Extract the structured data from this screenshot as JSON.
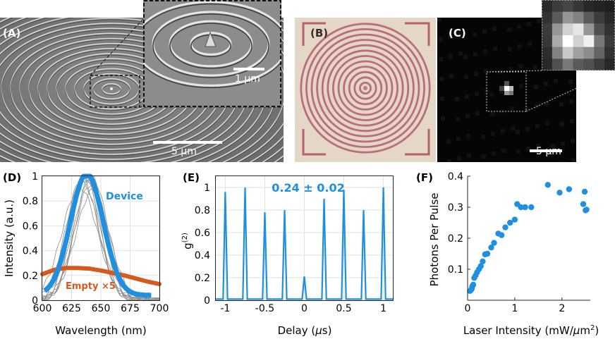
{
  "panels": {
    "A": {
      "label": "(A)",
      "scale_main": "5 µm",
      "scale_inset": "1 µm"
    },
    "B": {
      "label": "(B)"
    },
    "C": {
      "label": "(C)",
      "scale": "5 µm"
    },
    "D": {
      "label": "(D)"
    },
    "E": {
      "label": "(E)"
    },
    "F": {
      "label": "(F)"
    }
  },
  "chart_data": [
    {
      "panel": "D",
      "type": "line",
      "xlabel": "Wavelength (nm)",
      "ylabel": "Intensity (a.u.)",
      "xlim": [
        600,
        700
      ],
      "ylim": [
        0,
        1
      ],
      "xticks": [
        600,
        625,
        650,
        675,
        700
      ],
      "yticks": [
        0,
        0.2,
        0.4,
        0.6,
        0.8,
        1
      ],
      "ytick_labels": [
        "0",
        "0.2",
        "0.4",
        "0.6",
        "0.8",
        "1"
      ],
      "series": [
        {
          "name": "Device",
          "color": "#1f8fe0",
          "model": "gaussian",
          "center": 638,
          "sigma": 14,
          "amplitude": 0.98
        },
        {
          "name": "Empty ×5",
          "color": "#d45a1e",
          "x": [
            600,
            610,
            620,
            630,
            640,
            650,
            660,
            670,
            680,
            690,
            700
          ],
          "y": [
            0.21,
            0.245,
            0.26,
            0.26,
            0.255,
            0.24,
            0.22,
            0.2,
            0.175,
            0.15,
            0.13
          ]
        }
      ],
      "grid": true
    },
    {
      "panel": "E",
      "type": "line",
      "xlabel": "Delay (µs)",
      "ylabel": "g(2)",
      "ylabel_main": "g",
      "ylabel_sup": "(2)",
      "annotation": "0.24 ± 0.02",
      "xlim": [
        -1.12,
        1.12
      ],
      "ylim": [
        0,
        1.1
      ],
      "xticks": [
        -1,
        -0.5,
        0,
        0.5,
        1
      ],
      "xtick_labels": [
        "-1",
        "-0.5",
        "0",
        "0.5",
        "1"
      ],
      "yticks": [
        0,
        0.2,
        0.4,
        0.6,
        0.8,
        1
      ],
      "ytick_labels": [
        "0",
        "0.2",
        "0.4",
        "0.6",
        "0.8",
        "1"
      ],
      "peaks": {
        "x": [
          -1,
          -0.75,
          -0.5,
          -0.25,
          0,
          0.25,
          0.5,
          0.75,
          1
        ],
        "y": [
          0.96,
          1.0,
          0.78,
          0.8,
          0.21,
          0.9,
          0.98,
          0.8,
          1.0
        ]
      },
      "color": "#1f8fe0",
      "grid": true
    },
    {
      "panel": "F",
      "type": "scatter",
      "xlabel": "Laser Intensity (mW/µm²)",
      "xlabel_main": "Laser Intensity (mW/",
      "xlabel_mu": "µ",
      "xlabel_m": "m",
      "xlabel_sup": "2",
      "xlabel_close": ")",
      "ylabel": "Photons Per Pulse",
      "xlim": [
        0,
        2.6
      ],
      "ylim": [
        0,
        0.4
      ],
      "xticks": [
        0,
        1,
        2
      ],
      "yticks": [
        0.1,
        0.2,
        0.3,
        0.4
      ],
      "ytick_labels": [
        "0.1",
        "0.2",
        "0.3",
        "0.4"
      ],
      "color": "#1f8fe0",
      "points": {
        "x": [
          0.05,
          0.07,
          0.08,
          0.09,
          0.1,
          0.12,
          0.14,
          0.17,
          0.2,
          0.24,
          0.28,
          0.32,
          0.37,
          0.42,
          0.5,
          0.56,
          0.65,
          0.72,
          0.8,
          0.9,
          1.0,
          1.05,
          1.13,
          1.22,
          1.35,
          1.7,
          1.95,
          2.15,
          2.45,
          2.48,
          2.5,
          2.52
        ],
        "y": [
          0.03,
          0.033,
          0.035,
          0.038,
          0.045,
          0.05,
          0.072,
          0.08,
          0.09,
          0.1,
          0.11,
          0.125,
          0.148,
          0.15,
          0.17,
          0.185,
          0.215,
          0.21,
          0.235,
          0.25,
          0.26,
          0.31,
          0.3,
          0.3,
          0.3,
          0.372,
          0.347,
          0.358,
          0.31,
          0.35,
          0.29,
          0.292
        ]
      }
    }
  ]
}
